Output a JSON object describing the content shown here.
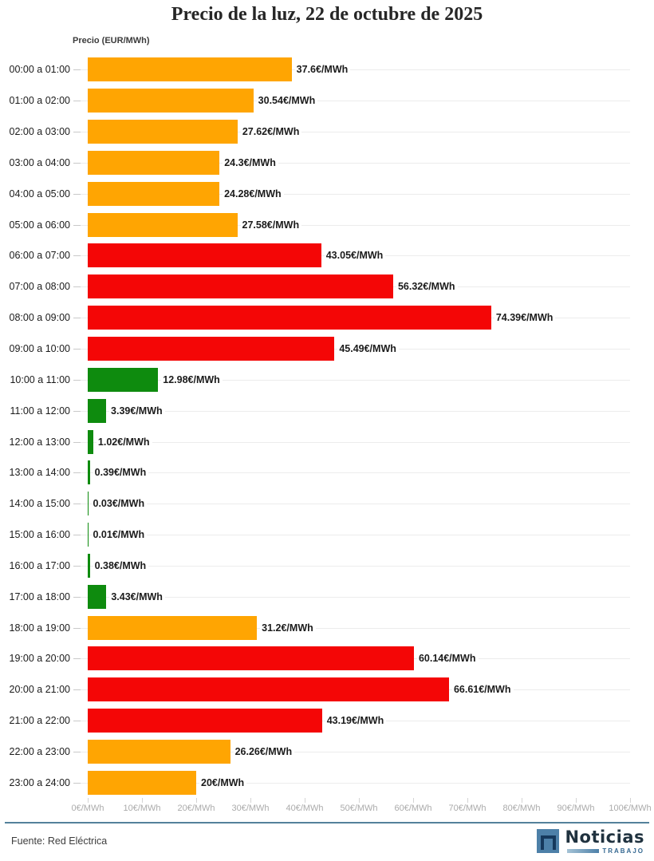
{
  "title": "Precio de la luz, 22 de octubre de 2025",
  "axis_title": "Precio (EUR/MWh)",
  "footer": {
    "source": "Fuente: Red Eléctrica"
  },
  "logo": {
    "name": "Noticias",
    "tagline": "TRABAJO"
  },
  "colors": {
    "orange": "#ffa502",
    "red": "#f40606",
    "green": "#0e8b0e",
    "separator": "#54819b",
    "gridline": "#ececec",
    "axis_label": "#ababab"
  },
  "chart_data": {
    "type": "bar",
    "orientation": "horizontal",
    "title": "Precio de la luz, 22 de octubre de 2025",
    "xlabel": "€/MWh",
    "ylabel": "Precio (EUR/MWh)",
    "xlim": [
      0,
      100
    ],
    "grid": "horizontal-row-lines",
    "x_ticks": [
      "0€/MWh",
      "10€/MWh",
      "20€/MWh",
      "30€/MWh",
      "40€/MWh",
      "50€/MWh",
      "60€/MWh",
      "70€/MWh",
      "80€/MWh",
      "90€/MWh",
      "100€/MWh"
    ],
    "categories": [
      "00:00 a 01:00",
      "01:00 a 02:00",
      "02:00 a 03:00",
      "03:00 a 04:00",
      "04:00 a 05:00",
      "05:00 a 06:00",
      "06:00 a 07:00",
      "07:00 a 08:00",
      "08:00 a 09:00",
      "09:00 a 10:00",
      "10:00 a 11:00",
      "11:00 a 12:00",
      "12:00 a 13:00",
      "13:00 a 14:00",
      "14:00 a 15:00",
      "15:00 a 16:00",
      "16:00 a 17:00",
      "17:00 a 18:00",
      "18:00 a 19:00",
      "19:00 a 20:00",
      "20:00 a 21:00",
      "21:00 a 22:00",
      "22:00 a 23:00",
      "23:00 a 24:00"
    ],
    "values": [
      37.6,
      30.54,
      27.62,
      24.3,
      24.28,
      27.58,
      43.05,
      56.32,
      74.39,
      45.49,
      12.98,
      3.39,
      1.02,
      0.39,
      0.03,
      0.01,
      0.38,
      3.43,
      31.2,
      60.14,
      66.61,
      43.19,
      26.26,
      20
    ],
    "value_labels": [
      "37.6€/MWh",
      "30.54€/MWh",
      "27.62€/MWh",
      "24.3€/MWh",
      "24.28€/MWh",
      "27.58€/MWh",
      "43.05€/MWh",
      "56.32€/MWh",
      "74.39€/MWh",
      "45.49€/MWh",
      "12.98€/MWh",
      "3.39€/MWh",
      "1.02€/MWh",
      "0.39€/MWh",
      "0.03€/MWh",
      "0.01€/MWh",
      "0.38€/MWh",
      "3.43€/MWh",
      "31.2€/MWh",
      "60.14€/MWh",
      "66.61€/MWh",
      "43.19€/MWh",
      "26.26€/MWh",
      "20€/MWh"
    ],
    "bar_colors": [
      "orange",
      "orange",
      "orange",
      "orange",
      "orange",
      "orange",
      "red",
      "red",
      "red",
      "red",
      "green",
      "green",
      "green",
      "green",
      "green",
      "green",
      "green",
      "green",
      "orange",
      "red",
      "red",
      "red",
      "orange",
      "orange"
    ]
  }
}
